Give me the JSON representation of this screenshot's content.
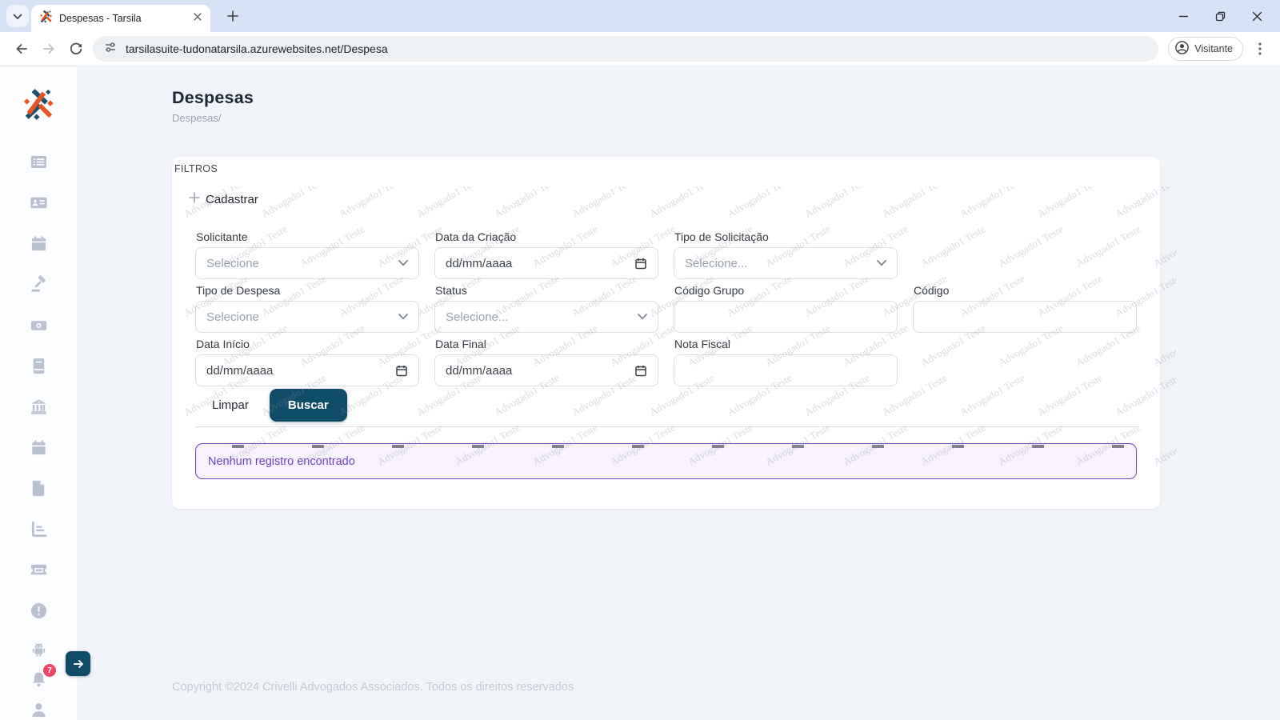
{
  "browser": {
    "tab_title": "Despesas - Tarsila",
    "url": "tarsilasuite-tudonatarsila.azurewebsites.net/Despesa",
    "profile_label": "Visitante"
  },
  "sidebar": {
    "notification_count": "7",
    "icon_names": [
      "list",
      "contact-card",
      "calendar",
      "gavel",
      "money",
      "book",
      "bank",
      "calendar",
      "document",
      "chart",
      "ticket",
      "alert",
      "android",
      "notifications",
      "user"
    ]
  },
  "page": {
    "title": "Despesas",
    "breadcrumb": "Despesas/",
    "watermark_text": "Advogado1 Teste",
    "footer_text": "Copyright ©2024 Crivelli Advogados Associados. Todos os direitos reservados"
  },
  "filters": {
    "section_label": "FILTROS",
    "add_label": "Cadastrar",
    "clear_label": "Limpar",
    "search_label": "Buscar",
    "empty_message": "Nenhum registro encontrado",
    "fields": {
      "solicitante": {
        "label": "Solicitante",
        "type": "select",
        "value": "Selecione"
      },
      "data_criacao": {
        "label": "Data da Criação",
        "type": "date",
        "placeholder": "dd/mm/aaaa"
      },
      "tipo_solicitacao": {
        "label": "Tipo de Solicitação",
        "type": "select",
        "value": "Selecione..."
      },
      "tipo_despesa": {
        "label": "Tipo de Despesa",
        "type": "select",
        "value": "Selecione"
      },
      "status": {
        "label": "Status",
        "type": "select",
        "value": "Selecione..."
      },
      "codigo_grupo": {
        "label": "Código Grupo",
        "type": "text",
        "value": ""
      },
      "codigo": {
        "label": "Código",
        "type": "text",
        "value": ""
      },
      "data_inicio": {
        "label": "Data Início",
        "type": "date",
        "placeholder": "dd/mm/aaaa"
      },
      "data_final": {
        "label": "Data Final",
        "type": "date",
        "placeholder": "dd/mm/aaaa"
      },
      "nota_fiscal": {
        "label": "Nota Fiscal",
        "type": "text",
        "value": ""
      }
    }
  },
  "colors": {
    "primary_navy": "#0f4c68",
    "brand_orange": "#e8531f",
    "brand_blue": "#1d4f6e",
    "alert_purple": "#6f42c1",
    "badge_red": "#ef4566"
  }
}
